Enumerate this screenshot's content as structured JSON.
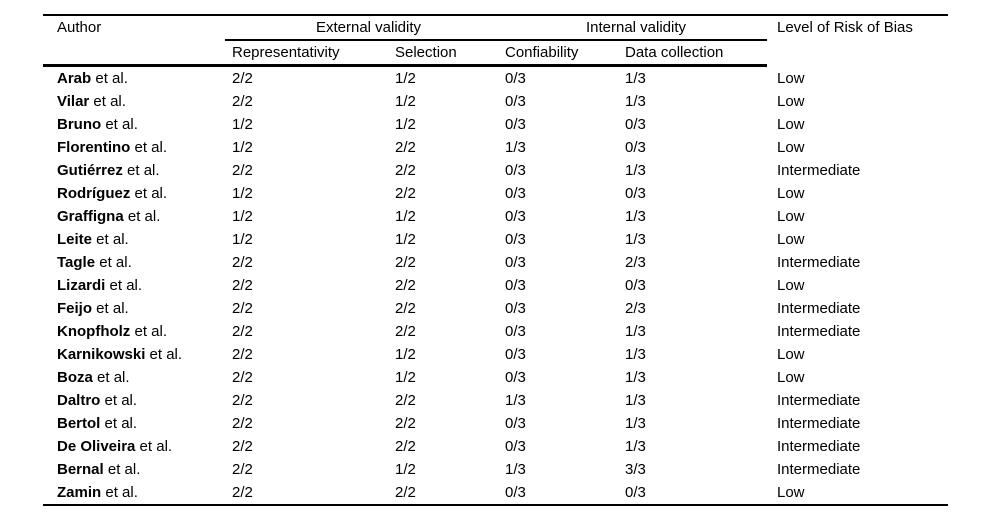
{
  "colors": {
    "background": "#ffffff",
    "text": "#000000",
    "rule": "#000000"
  },
  "table": {
    "headers": {
      "author": "Author",
      "external_validity": "External validity",
      "internal_validity": "Internal validity",
      "representativity": "Representativity",
      "selection": "Selection",
      "confiability": "Confiability",
      "data_collection": "Data collection",
      "risk_of_bias": "Level of Risk of Bias"
    },
    "author_suffix": " et al.",
    "risk_levels": [
      "Low",
      "Intermediate"
    ],
    "rows": [
      {
        "author": "Arab",
        "representativity": "2/2",
        "selection": "1/2",
        "confiability": "0/3",
        "data_collection": "1/3",
        "risk": "Low"
      },
      {
        "author": "Vilar",
        "representativity": "2/2",
        "selection": "1/2",
        "confiability": "0/3",
        "data_collection": "1/3",
        "risk": "Low"
      },
      {
        "author": "Bruno",
        "representativity": "1/2",
        "selection": "1/2",
        "confiability": "0/3",
        "data_collection": "0/3",
        "risk": "Low"
      },
      {
        "author": "Florentino",
        "representativity": "1/2",
        "selection": "2/2",
        "confiability": "1/3",
        "data_collection": "0/3",
        "risk": "Low"
      },
      {
        "author": "Gutiérrez",
        "representativity": "2/2",
        "selection": "2/2",
        "confiability": "0/3",
        "data_collection": "1/3",
        "risk": "Intermediate"
      },
      {
        "author": "Rodríguez",
        "representativity": "1/2",
        "selection": "2/2",
        "confiability": "0/3",
        "data_collection": "0/3",
        "risk": "Low"
      },
      {
        "author": "Graffigna",
        "representativity": "1/2",
        "selection": "1/2",
        "confiability": "0/3",
        "data_collection": "1/3",
        "risk": "Low"
      },
      {
        "author": "Leite",
        "representativity": "1/2",
        "selection": "1/2",
        "confiability": "0/3",
        "data_collection": "1/3",
        "risk": "Low"
      },
      {
        "author": "Tagle",
        "representativity": "2/2",
        "selection": "2/2",
        "confiability": "0/3",
        "data_collection": "2/3",
        "risk": "Intermediate"
      },
      {
        "author": "Lizardi",
        "representativity": "2/2",
        "selection": "2/2",
        "confiability": "0/3",
        "data_collection": "0/3",
        "risk": "Low"
      },
      {
        "author": "Feijo",
        "representativity": "2/2",
        "selection": "2/2",
        "confiability": "0/3",
        "data_collection": "2/3",
        "risk": "Intermediate"
      },
      {
        "author": "Knopfholz",
        "representativity": "2/2",
        "selection": "2/2",
        "confiability": "0/3",
        "data_collection": "1/3",
        "risk": "Intermediate"
      },
      {
        "author": "Karnikowski",
        "representativity": "2/2",
        "selection": "1/2",
        "confiability": "0/3",
        "data_collection": "1/3",
        "risk": "Low"
      },
      {
        "author": "Boza",
        "representativity": "2/2",
        "selection": "1/2",
        "confiability": "0/3",
        "data_collection": "1/3",
        "risk": "Low"
      },
      {
        "author": "Daltro",
        "representativity": "2/2",
        "selection": "2/2",
        "confiability": "1/3",
        "data_collection": "1/3",
        "risk": "Intermediate"
      },
      {
        "author": "Bertol",
        "representativity": "2/2",
        "selection": "2/2",
        "confiability": "0/3",
        "data_collection": "1/3",
        "risk": "Intermediate"
      },
      {
        "author": "De Oliveira",
        "representativity": "2/2",
        "selection": "2/2",
        "confiability": "0/3",
        "data_collection": "1/3",
        "risk": "Intermediate"
      },
      {
        "author": "Bernal",
        "representativity": "2/2",
        "selection": "1/2",
        "confiability": "1/3",
        "data_collection": "3/3",
        "risk": "Intermediate"
      },
      {
        "author": "Zamin",
        "representativity": "2/2",
        "selection": "2/2",
        "confiability": "0/3",
        "data_collection": "0/3",
        "risk": "Low"
      }
    ]
  }
}
